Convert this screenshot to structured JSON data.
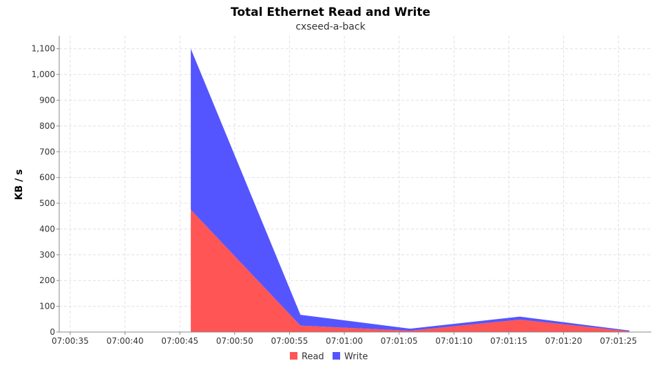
{
  "chart_data": {
    "type": "area",
    "stacked": true,
    "title": "Total Ethernet Read and Write",
    "subtitle": "cxseed-a-back",
    "xlabel": "",
    "ylabel": "KB / s",
    "x_ticks": [
      "07:00:35",
      "07:00:40",
      "07:00:45",
      "07:00:50",
      "07:00:55",
      "07:01:00",
      "07:01:05",
      "07:01:10",
      "07:01:15",
      "07:01:20",
      "07:01:25"
    ],
    "y_ticks": [
      "0",
      "100",
      "200",
      "300",
      "400",
      "500",
      "600",
      "700",
      "800",
      "900",
      "1,000",
      "1,100"
    ],
    "xlim": [
      "07:00:34",
      "07:01:28"
    ],
    "ylim": [
      0,
      1150
    ],
    "x": [
      "07:00:46",
      "07:00:56",
      "07:01:06",
      "07:01:16",
      "07:01:26"
    ],
    "series": [
      {
        "name": "Read",
        "color": "#ff5555",
        "values": [
          475,
          25,
          5,
          48,
          3
        ]
      },
      {
        "name": "Write",
        "color": "#5555ff",
        "values": [
          625,
          42,
          8,
          12,
          3
        ]
      }
    ],
    "grid": true,
    "legend_position": "bottom-center"
  }
}
